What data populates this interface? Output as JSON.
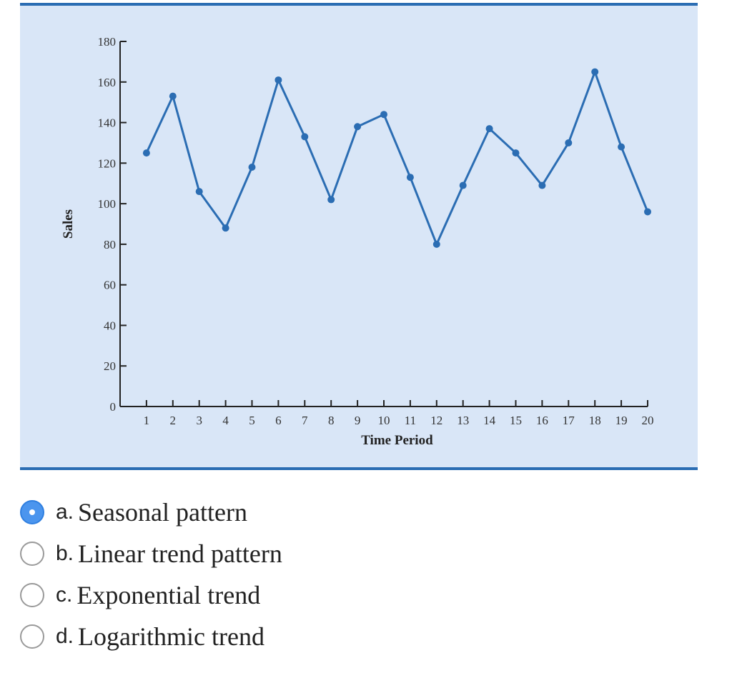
{
  "chart_data": {
    "type": "line",
    "title": "",
    "xlabel": "Time Period",
    "ylabel": "Sales",
    "x": [
      1,
      2,
      3,
      4,
      5,
      6,
      7,
      8,
      9,
      10,
      11,
      12,
      13,
      14,
      15,
      16,
      17,
      18,
      19,
      20
    ],
    "series": [
      {
        "name": "Sales",
        "values": [
          125,
          153,
          106,
          88,
          118,
          161,
          133,
          102,
          138,
          144,
          113,
          80,
          109,
          137,
          125,
          109,
          130,
          165,
          128,
          96
        ]
      }
    ],
    "ylim": [
      0,
      180
    ],
    "yticks": [
      0,
      20,
      40,
      60,
      80,
      100,
      120,
      140,
      160,
      180
    ],
    "xlim": [
      0,
      20
    ],
    "grid": false,
    "line_color": "#2b6db3",
    "background_color": "#d9e6f7"
  },
  "options": [
    {
      "letter": "a.",
      "text": "Seasonal pattern",
      "selected": true
    },
    {
      "letter": "b.",
      "text": "Linear trend pattern",
      "selected": false
    },
    {
      "letter": "c.",
      "text": "Exponential trend",
      "selected": false
    },
    {
      "letter": "d.",
      "text": "Logarithmic trend",
      "selected": false
    }
  ]
}
